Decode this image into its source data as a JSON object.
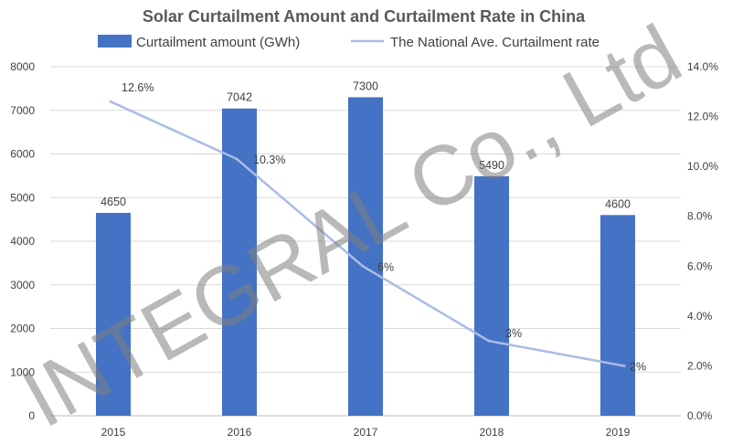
{
  "chart_data": {
    "type": "bar+line",
    "title": "Solar Curtailment Amount and Curtailment Rate in China",
    "categories": [
      "2015",
      "2016",
      "2017",
      "2018",
      "2019"
    ],
    "series": [
      {
        "name": "Curtailment amount (GWh)",
        "type": "bar",
        "axis": "left",
        "values": [
          4650,
          7042,
          7300,
          5490,
          4600
        ],
        "data_labels": [
          "4650",
          "7042",
          "7300",
          "5490",
          "4600"
        ],
        "color": "#4472C4"
      },
      {
        "name": "The National Ave. Curtailment rate",
        "type": "line",
        "axis": "right",
        "values": [
          12.6,
          10.3,
          6,
          3,
          2
        ],
        "data_labels": [
          "12.6%",
          "10.3%",
          "6%",
          "3%",
          "2%"
        ],
        "color": "#A9BCE2"
      }
    ],
    "y_left": {
      "min": 0,
      "max": 8000,
      "ticks": [
        "0",
        "1000",
        "2000",
        "3000",
        "4000",
        "5000",
        "6000",
        "7000",
        "8000"
      ]
    },
    "y_right": {
      "min": 0,
      "max": 14,
      "ticks": [
        "0.0%",
        "2.0%",
        "4.0%",
        "6.0%",
        "8.0%",
        "10.0%",
        "12.0%",
        "14.0%"
      ]
    },
    "grid": true,
    "legend_position": "top"
  },
  "watermark": "INTEGRAL Co., Ltd"
}
